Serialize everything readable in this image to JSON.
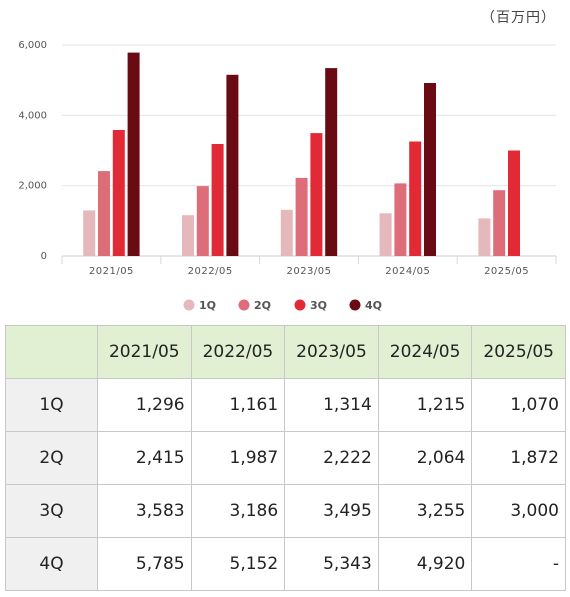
{
  "unit_label": "（百万円）",
  "chart_data": {
    "type": "bar",
    "categories": [
      "2021/05",
      "2022/05",
      "2023/05",
      "2024/05",
      "2025/05"
    ],
    "series": [
      {
        "name": "1Q",
        "color": "#e5b8bc",
        "values": [
          1296,
          1161,
          1314,
          1215,
          1070
        ]
      },
      {
        "name": "2Q",
        "color": "#dd6e79",
        "values": [
          2415,
          1987,
          2222,
          2064,
          1872
        ]
      },
      {
        "name": "3Q",
        "color": "#e12a35",
        "values": [
          3583,
          3186,
          3495,
          3255,
          3000
        ]
      },
      {
        "name": "4Q",
        "color": "#6a0a12",
        "values": [
          5785,
          5152,
          5343,
          4920,
          null
        ]
      }
    ],
    "yticks": [
      "0",
      "2,000",
      "4,000",
      "6,000"
    ],
    "ylim": [
      0,
      6000
    ],
    "grid": true,
    "legend_position": "bottom"
  },
  "table": {
    "corner": "",
    "columns": [
      "2021/05",
      "2022/05",
      "2023/05",
      "2024/05",
      "2025/05"
    ],
    "rows": [
      {
        "label": "1Q",
        "cells": [
          "1,296",
          "1,161",
          "1,314",
          "1,215",
          "1,070"
        ]
      },
      {
        "label": "2Q",
        "cells": [
          "2,415",
          "1,987",
          "2,222",
          "2,064",
          "1,872"
        ]
      },
      {
        "label": "3Q",
        "cells": [
          "3,583",
          "3,186",
          "3,495",
          "3,255",
          "3,000"
        ]
      },
      {
        "label": "4Q",
        "cells": [
          "5,785",
          "5,152",
          "5,343",
          "4,920",
          "-"
        ]
      }
    ]
  }
}
